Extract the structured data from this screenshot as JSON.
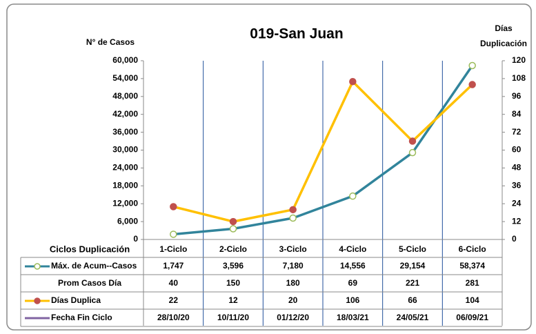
{
  "chart_data": {
    "type": "line",
    "title": "019-San Juan",
    "y_label": "N° de Casos",
    "y2_label": [
      "Días",
      "Duplicación"
    ],
    "categories": [
      "1-Ciclo",
      "2-Ciclo",
      "3-Ciclo",
      "4-Ciclo",
      "5-Ciclo",
      "6-Ciclo"
    ],
    "ylim": [
      0,
      60000
    ],
    "yticks": [
      0,
      {
        "value": 6000,
        "label": "6,000"
      },
      {
        "value": 12000,
        "label": "12,000"
      },
      {
        "value": 18000,
        "label": "18,000"
      },
      {
        "value": 24000,
        "label": "24,000"
      },
      {
        "value": 30000,
        "label": "30,000"
      },
      {
        "value": 36000,
        "label": "36,000"
      },
      {
        "value": 42000,
        "label": "42,000"
      },
      {
        "value": 48000,
        "label": "48,000"
      },
      {
        "value": 54000,
        "label": "54,000"
      },
      {
        "value": 60000,
        "label": "60,000"
      }
    ],
    "y2lim": [
      0,
      120
    ],
    "y2ticks": [
      0,
      12,
      24,
      36,
      48,
      60,
      72,
      84,
      96,
      108,
      120
    ],
    "series": [
      {
        "name": "Máx. de Acum--Casos",
        "color": "#31849b",
        "marker_color": "#9bbb59",
        "values": [
          1747,
          3596,
          7180,
          14556,
          29154,
          58374
        ],
        "value_labels": [
          "1,747",
          "3,596",
          "7,180",
          "14,556",
          "29,154",
          "58,374"
        ]
      },
      {
        "name": "Días Duplica",
        "color": "#ffc000",
        "marker_color": "#c0504d",
        "axis": "y2",
        "values": [
          22,
          12,
          20,
          106,
          66,
          104
        ]
      }
    ],
    "table": {
      "header": "Ciclos Duplicación",
      "rows": [
        {
          "name": "Prom Casos Día",
          "values": [
            40,
            150,
            180,
            69,
            221,
            281
          ]
        },
        {
          "name": "Fecha Fin Ciclo",
          "color": "#8064a2",
          "values": [
            "28/10/20",
            "10/11/20",
            "01/12/20",
            "18/03/21",
            "24/05/21",
            "06/09/21"
          ]
        }
      ]
    }
  }
}
